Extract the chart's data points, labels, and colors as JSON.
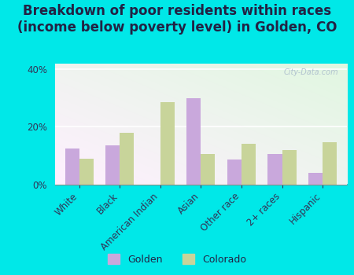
{
  "title": "Breakdown of poor residents within races\n(income below poverty level) in Golden, CO",
  "categories": [
    "White",
    "Black",
    "American Indian",
    "Asian",
    "Other race",
    "2+ races",
    "Hispanic"
  ],
  "golden_values": [
    12.5,
    13.5,
    0.0,
    30.0,
    8.5,
    10.5,
    4.0
  ],
  "colorado_values": [
    9.0,
    18.0,
    28.5,
    10.5,
    14.0,
    12.0,
    14.5
  ],
  "golden_color": "#c9a8dc",
  "colorado_color": "#c8d49a",
  "bar_width": 0.35,
  "ylim": [
    0,
    42
  ],
  "yticks": [
    0,
    20,
    40
  ],
  "ytick_labels": [
    "0%",
    "20%",
    "40%"
  ],
  "background_color": "#00e8e8",
  "watermark": "City-Data.com",
  "legend_golden": "Golden",
  "legend_colorado": "Colorado",
  "title_fontsize": 12,
  "tick_fontsize": 8.5,
  "title_color": "#222244"
}
